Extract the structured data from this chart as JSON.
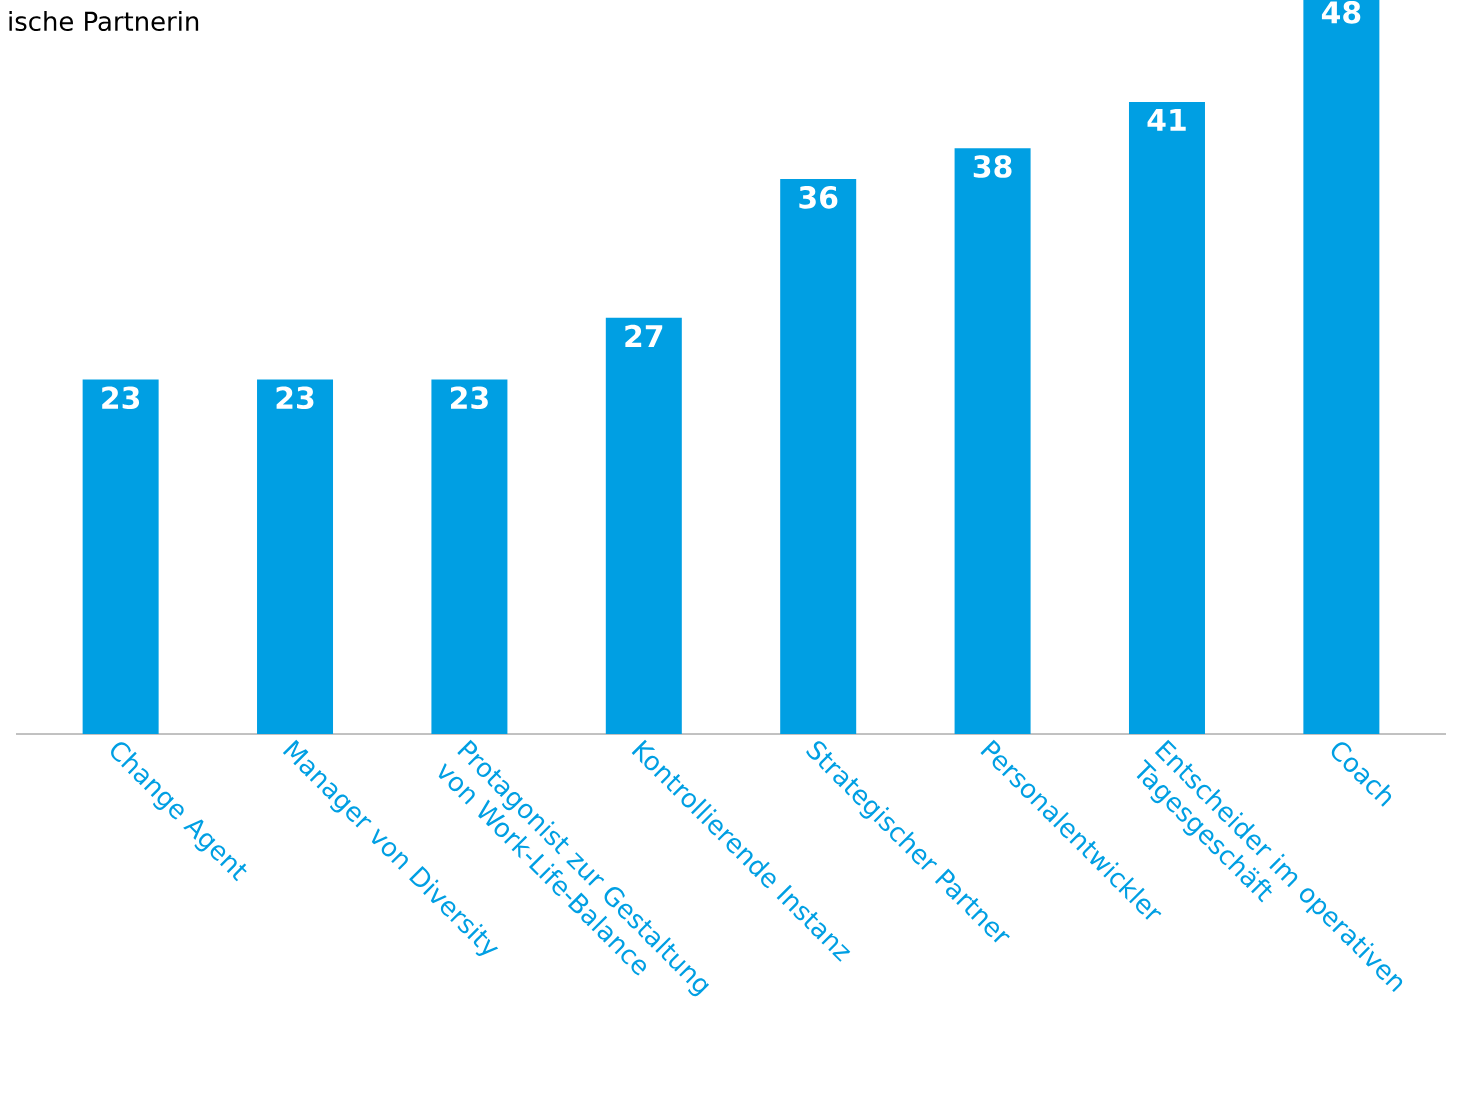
{
  "chart_data": {
    "type": "bar",
    "title": "ische Partnerin",
    "categories": [
      "Change Agent",
      "Manager von Diversity",
      "Protagonist zur Gestaltung von Work-Life-Balance",
      "Kontrollierende Instanz",
      "Strategischer Partner",
      "Personalentwickler",
      "Entscheider im operativen Tagesgeschäft",
      "Coach"
    ],
    "values": [
      23,
      23,
      23,
      27,
      36,
      38,
      41,
      48
    ],
    "color": "#009fe3",
    "ylim": [
      0,
      48
    ],
    "data_labels": true
  }
}
